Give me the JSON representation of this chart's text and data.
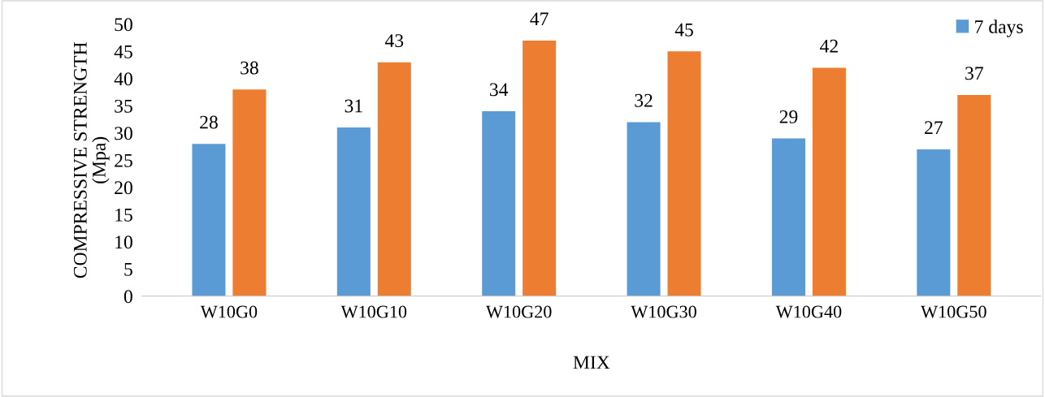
{
  "chart_data": {
    "type": "bar",
    "xlabel": "MIX",
    "ylabel": "COMPRESSIVE STRENGTH\n(Mpa)",
    "categories": [
      "W10G0",
      "W10G10",
      "W10G20",
      "W10G30",
      "W10G40",
      "W10G50"
    ],
    "series": [
      {
        "name": "7 days",
        "color": "#5b9bd5",
        "values": [
          28,
          31,
          34,
          32,
          29,
          27
        ]
      },
      {
        "color": "#ed7d31",
        "values": [
          38,
          43,
          47,
          45,
          42,
          37
        ]
      }
    ],
    "ylim": [
      0,
      50
    ],
    "yticks": [
      0,
      5,
      10,
      15,
      20,
      25,
      30,
      35,
      40,
      45,
      50
    ],
    "data_labels": true,
    "grid": false,
    "legend": "top right"
  }
}
